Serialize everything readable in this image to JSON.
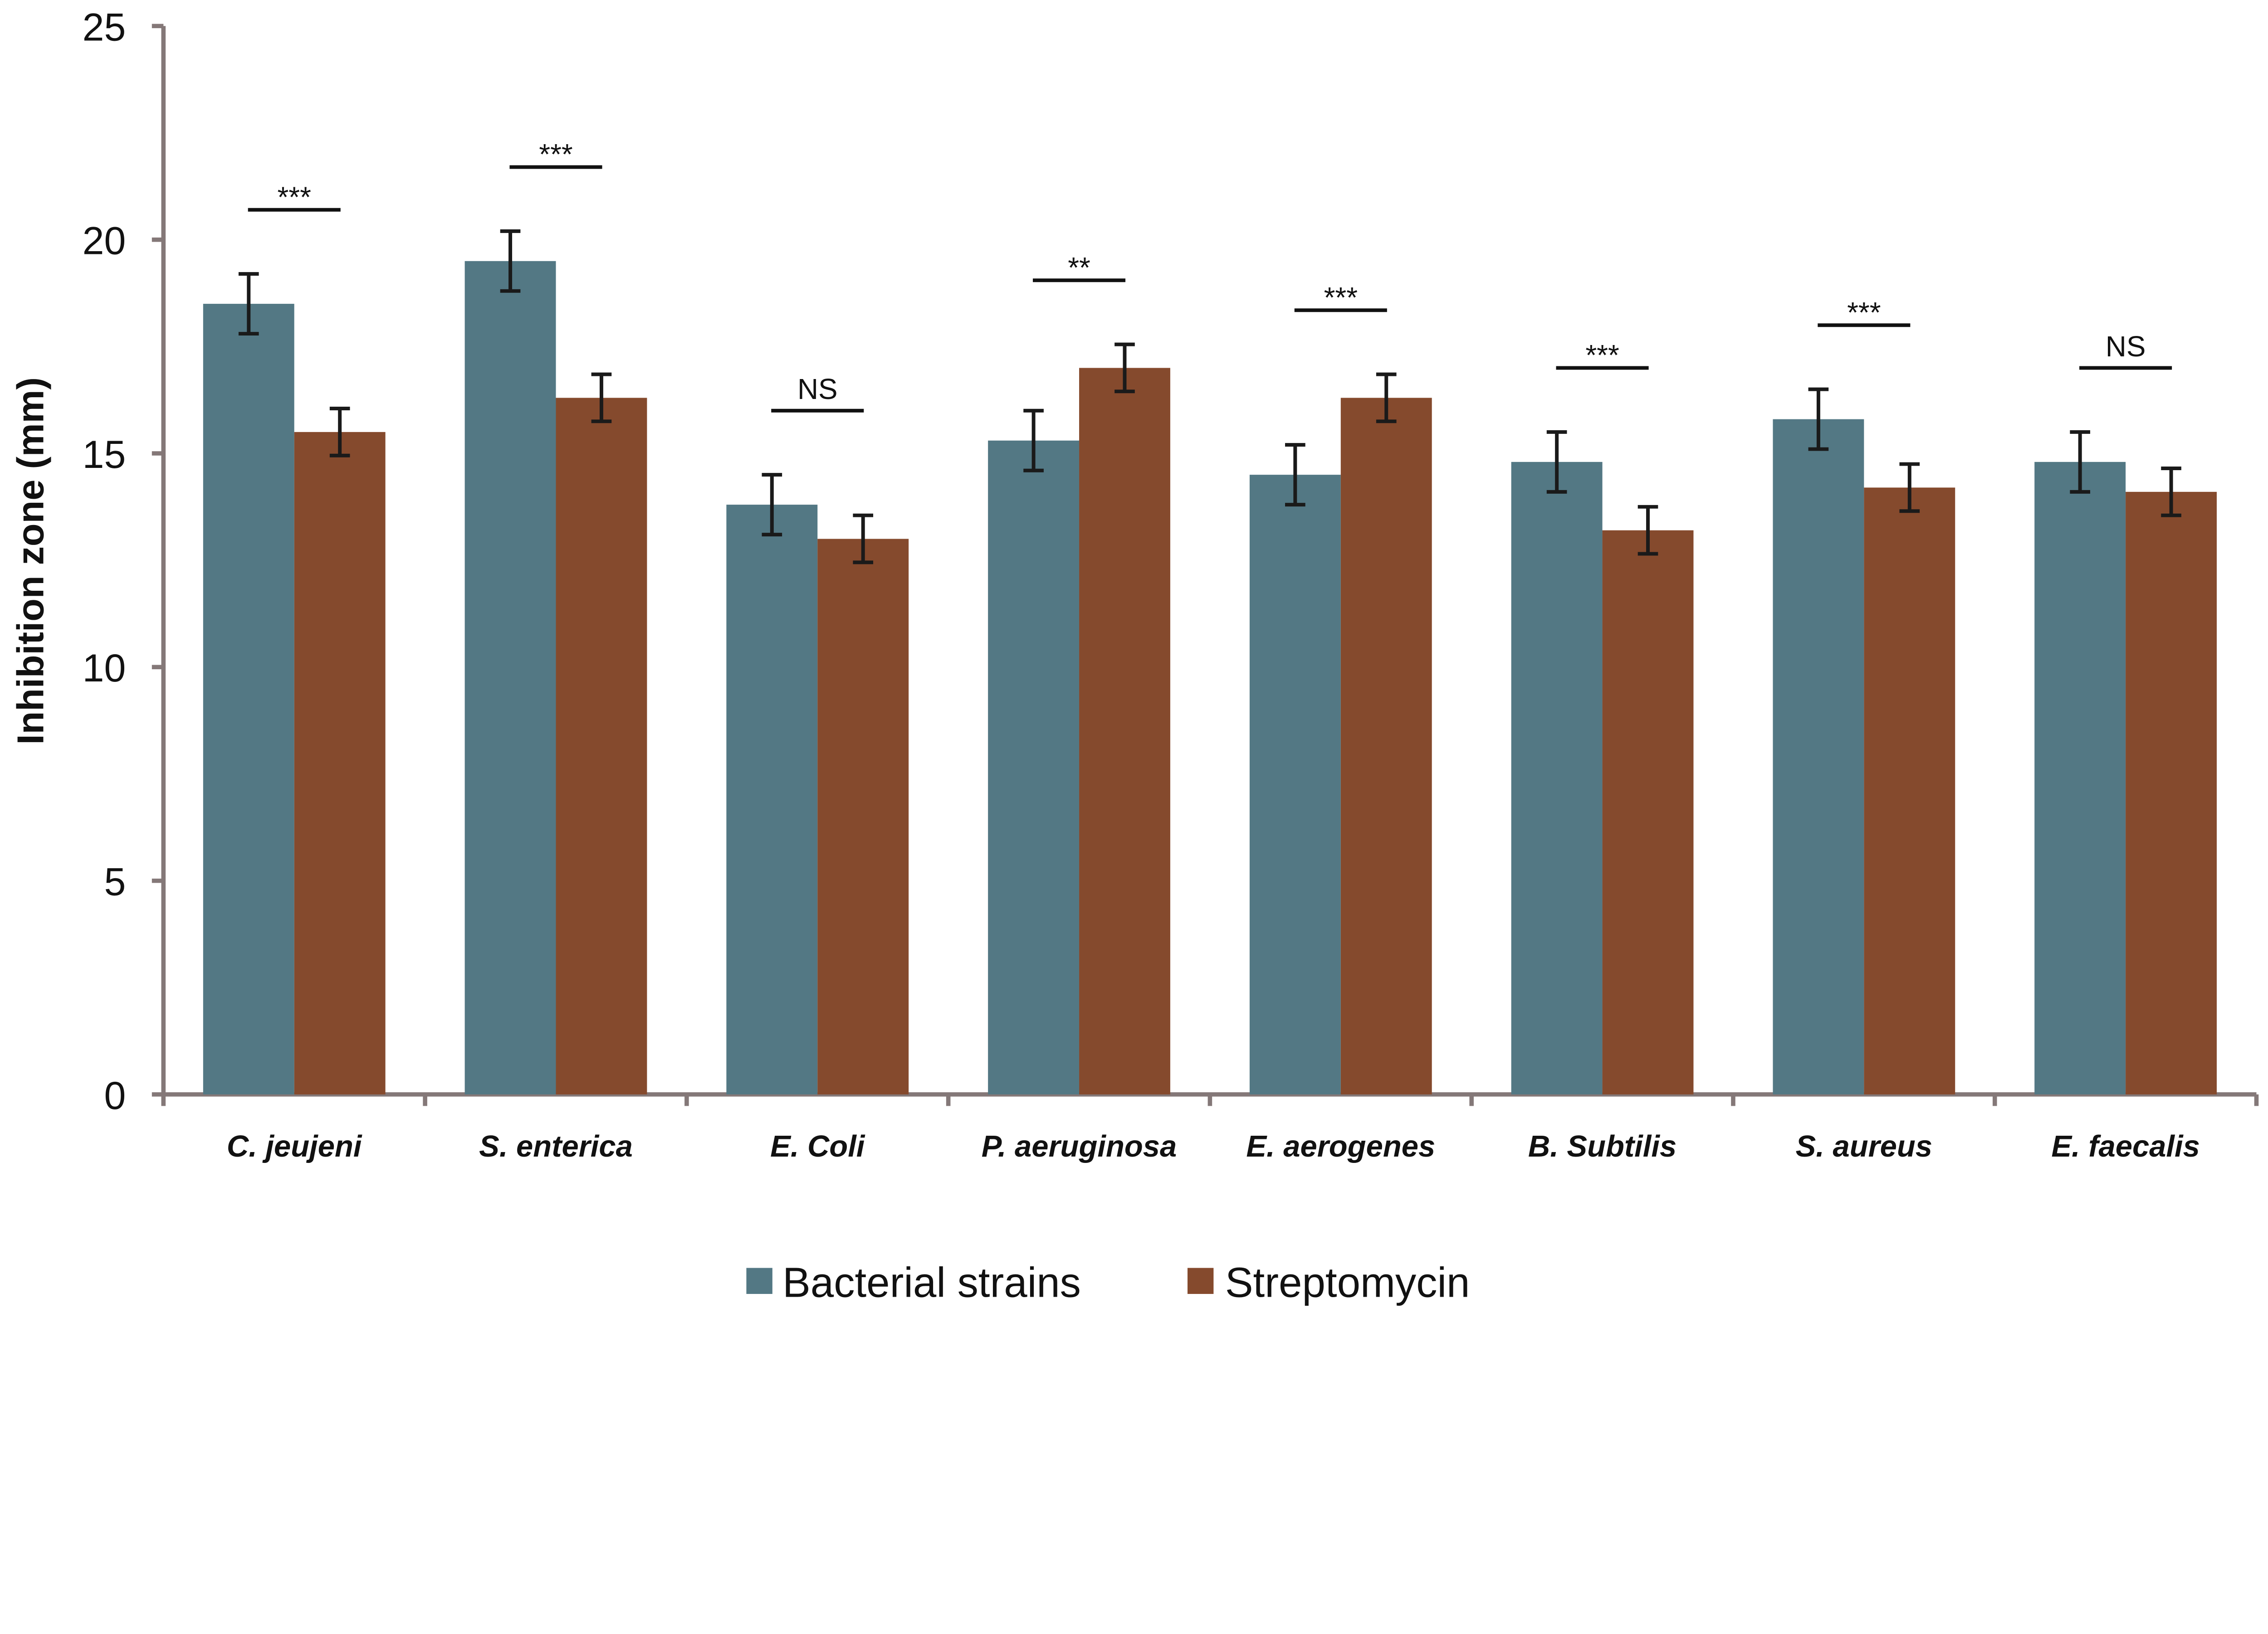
{
  "chart_data": {
    "type": "bar",
    "title": "",
    "xlabel": "",
    "ylabel": "Inhibition zone (mm)",
    "ylim": [
      0,
      25
    ],
    "yticks": [
      0,
      5,
      10,
      15,
      20,
      25
    ],
    "grid": false,
    "legend_position": "bottom",
    "categories": [
      "C. jeujeni",
      "S. enterica",
      "E. Coli",
      "P. aeruginosa",
      "E. aerogenes",
      "B. Subtilis",
      "S. aureus",
      "E. faecalis"
    ],
    "series": [
      {
        "name": "Bacterial strains",
        "color": "#537884",
        "values": [
          18.5,
          19.5,
          13.8,
          15.3,
          14.5,
          14.8,
          15.8,
          14.8
        ],
        "errors": [
          0.7,
          0.7,
          0.7,
          0.7,
          0.7,
          0.7,
          0.7,
          0.7
        ]
      },
      {
        "name": "Streptomycin",
        "color": "#854A2D",
        "values": [
          15.5,
          16.3,
          13.0,
          17.0,
          16.3,
          13.2,
          14.2,
          14.1
        ],
        "errors": [
          0.55,
          0.55,
          0.55,
          0.55,
          0.55,
          0.55,
          0.55,
          0.55
        ]
      }
    ],
    "significance": [
      "***",
      "***",
      "NS",
      "**",
      "***",
      "***",
      "***",
      "NS"
    ]
  },
  "colors": {
    "axis": "#847878",
    "error_bar": "#1a1a1a"
  }
}
